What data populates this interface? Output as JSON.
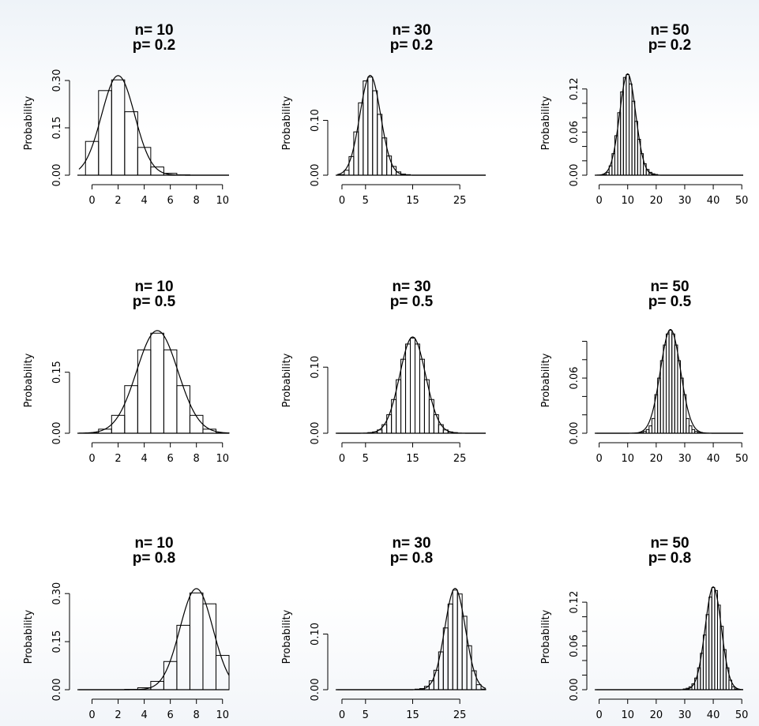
{
  "figure": {
    "grid": false,
    "layout": "3x3"
  },
  "chart_data": [
    {
      "type": "bar",
      "panel": "n10-p0.2",
      "title": "n= 10\np= 0.2",
      "n": 10,
      "p": 0.2,
      "xlabel": "",
      "ylabel": "Probability",
      "xlim": [
        -1,
        10.5
      ],
      "ylim": [
        0,
        0.33
      ],
      "xticks": [
        0,
        2,
        4,
        6,
        8,
        10
      ],
      "yticks": [
        0,
        0.15,
        0.3
      ],
      "ytick_labels": [
        "0.00",
        "0.15",
        "0.30"
      ],
      "x": [
        0,
        1,
        2,
        3,
        4,
        5,
        6,
        7,
        8,
        9,
        10
      ],
      "values": [
        0.107,
        0.268,
        0.302,
        0.201,
        0.088,
        0.026,
        0.006,
        0.001,
        0.0,
        0.0,
        0.0
      ],
      "normal_curve": {
        "mean": 2,
        "sd": 1.265
      }
    },
    {
      "type": "bar",
      "panel": "n30-p0.2",
      "title": "n= 30\np= 0.2",
      "n": 30,
      "p": 0.2,
      "xlabel": "",
      "ylabel": "Probability",
      "xlim": [
        -1,
        30.5
      ],
      "ylim": [
        0,
        0.19
      ],
      "xticks": [
        0,
        5,
        15,
        25
      ],
      "yticks": [
        0,
        0.1
      ],
      "ytick_labels": [
        "0.00",
        "0.10"
      ],
      "x": [
        0,
        1,
        2,
        3,
        4,
        5,
        6,
        7,
        8,
        9,
        10,
        11,
        12,
        13,
        14,
        15,
        16,
        17,
        18,
        19,
        20,
        21,
        22,
        23,
        24,
        25,
        26,
        27,
        28,
        29,
        30
      ],
      "values": [
        0.001,
        0.009,
        0.034,
        0.079,
        0.132,
        0.172,
        0.179,
        0.154,
        0.111,
        0.068,
        0.035,
        0.016,
        0.006,
        0.002,
        0.001,
        0.0,
        0.0,
        0.0,
        0.0,
        0.0,
        0.0,
        0.0,
        0.0,
        0.0,
        0.0,
        0.0,
        0.0,
        0.0,
        0.0,
        0.0,
        0.0
      ],
      "normal_curve": {
        "mean": 6,
        "sd": 2.191
      }
    },
    {
      "type": "bar",
      "panel": "n50-p0.2",
      "title": "n= 50\np= 0.2",
      "n": 50,
      "p": 0.2,
      "xlabel": "",
      "ylabel": "Probability",
      "xlim": [
        -1,
        50.5
      ],
      "ylim": [
        0,
        0.145
      ],
      "xticks": [
        0,
        10,
        20,
        30,
        40,
        50
      ],
      "yticks": [
        0,
        0.02,
        0.04,
        0.06,
        0.08,
        0.1,
        0.12
      ],
      "ytick_labels": [
        "0.00",
        "",
        "",
        "0.06",
        "",
        "",
        "0.12"
      ],
      "x": [
        0,
        1,
        2,
        3,
        4,
        5,
        6,
        7,
        8,
        9,
        10,
        11,
        12,
        13,
        14,
        15,
        16,
        17,
        18,
        19,
        20,
        21,
        22,
        23,
        24,
        25,
        26,
        27,
        28,
        29,
        30,
        31,
        32,
        33,
        34,
        35,
        36,
        37,
        38,
        39,
        40,
        41,
        42,
        43,
        44,
        45,
        46,
        47,
        48,
        49,
        50
      ],
      "values": [
        0.0,
        0.0,
        0.001,
        0.004,
        0.013,
        0.03,
        0.055,
        0.087,
        0.116,
        0.136,
        0.14,
        0.127,
        0.103,
        0.075,
        0.05,
        0.03,
        0.016,
        0.008,
        0.004,
        0.002,
        0.001,
        0.0,
        0.0,
        0.0,
        0.0,
        0.0,
        0.0,
        0.0,
        0.0,
        0.0,
        0.0,
        0.0,
        0.0,
        0.0,
        0.0,
        0.0,
        0.0,
        0.0,
        0.0,
        0.0,
        0.0,
        0.0,
        0.0,
        0.0,
        0.0,
        0.0,
        0.0,
        0.0,
        0.0,
        0.0,
        0.0
      ],
      "normal_curve": {
        "mean": 10,
        "sd": 2.828
      }
    },
    {
      "type": "bar",
      "panel": "n10-p0.5",
      "title": "n= 10\np= 0.5",
      "n": 10,
      "p": 0.5,
      "xlabel": "",
      "ylabel": "Probability",
      "xlim": [
        -1,
        10.5
      ],
      "ylim": [
        0,
        0.26
      ],
      "xticks": [
        0,
        2,
        4,
        6,
        8,
        10
      ],
      "yticks": [
        0,
        0.15
      ],
      "ytick_labels": [
        "0.00",
        "0.15"
      ],
      "x": [
        0,
        1,
        2,
        3,
        4,
        5,
        6,
        7,
        8,
        9,
        10
      ],
      "values": [
        0.001,
        0.01,
        0.044,
        0.117,
        0.205,
        0.246,
        0.205,
        0.117,
        0.044,
        0.01,
        0.001
      ],
      "normal_curve": {
        "mean": 5,
        "sd": 1.581
      }
    },
    {
      "type": "bar",
      "panel": "n30-p0.5",
      "title": "n= 30\np= 0.5",
      "n": 30,
      "p": 0.5,
      "xlabel": "",
      "ylabel": "Probability",
      "xlim": [
        -1,
        30.5
      ],
      "ylim": [
        0,
        0.16
      ],
      "xticks": [
        0,
        5,
        15,
        25
      ],
      "yticks": [
        0,
        0.1
      ],
      "ytick_labels": [
        "0.00",
        "0.10"
      ],
      "x": [
        0,
        1,
        2,
        3,
        4,
        5,
        6,
        7,
        8,
        9,
        10,
        11,
        12,
        13,
        14,
        15,
        16,
        17,
        18,
        19,
        20,
        21,
        22,
        23,
        24,
        25,
        26,
        27,
        28,
        29,
        30
      ],
      "values": [
        0.0,
        0.0,
        0.0,
        0.0,
        0.0,
        0.0,
        0.001,
        0.002,
        0.005,
        0.013,
        0.028,
        0.051,
        0.081,
        0.112,
        0.135,
        0.144,
        0.135,
        0.112,
        0.081,
        0.051,
        0.028,
        0.013,
        0.005,
        0.002,
        0.001,
        0.0,
        0.0,
        0.0,
        0.0,
        0.0,
        0.0
      ],
      "normal_curve": {
        "mean": 15,
        "sd": 2.739
      }
    },
    {
      "type": "bar",
      "panel": "n50-p0.5",
      "title": "n= 50\np= 0.5",
      "n": 50,
      "p": 0.5,
      "xlabel": "",
      "ylabel": "Probability",
      "xlim": [
        -1,
        50.5
      ],
      "ylim": [
        0,
        0.115
      ],
      "xticks": [
        0,
        10,
        20,
        30,
        40,
        50
      ],
      "yticks": [
        0,
        0.02,
        0.04,
        0.06,
        0.08,
        0.1
      ],
      "ytick_labels": [
        "0.00",
        "",
        "",
        "0.06",
        "",
        ""
      ],
      "x": [
        0,
        1,
        2,
        3,
        4,
        5,
        6,
        7,
        8,
        9,
        10,
        11,
        12,
        13,
        14,
        15,
        16,
        17,
        18,
        19,
        20,
        21,
        22,
        23,
        24,
        25,
        26,
        27,
        28,
        29,
        30,
        31,
        32,
        33,
        34,
        35,
        36,
        37,
        38,
        39,
        40,
        41,
        42,
        43,
        44,
        45,
        46,
        47,
        48,
        49,
        50
      ],
      "values": [
        0.0,
        0.0,
        0.0,
        0.0,
        0.0,
        0.0,
        0.0,
        0.0,
        0.0,
        0.0,
        0.0,
        0.0,
        0.0,
        0.0,
        0.0,
        0.001,
        0.002,
        0.004,
        0.008,
        0.016,
        0.042,
        0.06,
        0.079,
        0.096,
        0.108,
        0.112,
        0.108,
        0.096,
        0.079,
        0.06,
        0.042,
        0.016,
        0.008,
        0.004,
        0.002,
        0.001,
        0.0,
        0.0,
        0.0,
        0.0,
        0.0,
        0.0,
        0.0,
        0.0,
        0.0,
        0.0,
        0.0,
        0.0,
        0.0,
        0.0,
        0.0
      ],
      "normal_curve": {
        "mean": 25,
        "sd": 3.536
      }
    },
    {
      "type": "bar",
      "panel": "n10-p0.8",
      "title": "n= 10\np= 0.8",
      "n": 10,
      "p": 0.8,
      "xlabel": "",
      "ylabel": "Probability",
      "xlim": [
        -1,
        10.5
      ],
      "ylim": [
        0,
        0.33
      ],
      "xticks": [
        0,
        2,
        4,
        6,
        8,
        10
      ],
      "yticks": [
        0,
        0.15,
        0.3
      ],
      "ytick_labels": [
        "0.00",
        "0.15",
        "0.30"
      ],
      "x": [
        0,
        1,
        2,
        3,
        4,
        5,
        6,
        7,
        8,
        9,
        10
      ],
      "values": [
        0.0,
        0.0,
        0.0,
        0.001,
        0.006,
        0.026,
        0.088,
        0.201,
        0.302,
        0.268,
        0.107
      ],
      "normal_curve": {
        "mean": 8,
        "sd": 1.265
      }
    },
    {
      "type": "bar",
      "panel": "n30-p0.8",
      "title": "n= 30\np= 0.8",
      "n": 30,
      "p": 0.8,
      "xlabel": "",
      "ylabel": "Probability",
      "xlim": [
        -1,
        30.5
      ],
      "ylim": [
        0,
        0.19
      ],
      "xticks": [
        0,
        5,
        15,
        25
      ],
      "yticks": [
        0,
        0.1
      ],
      "ytick_labels": [
        "0.00",
        "0.10"
      ],
      "x": [
        0,
        1,
        2,
        3,
        4,
        5,
        6,
        7,
        8,
        9,
        10,
        11,
        12,
        13,
        14,
        15,
        16,
        17,
        18,
        19,
        20,
        21,
        22,
        23,
        24,
        25,
        26,
        27,
        28,
        29,
        30
      ],
      "values": [
        0.0,
        0.0,
        0.0,
        0.0,
        0.0,
        0.0,
        0.0,
        0.0,
        0.0,
        0.0,
        0.0,
        0.0,
        0.0,
        0.0,
        0.0,
        0.0,
        0.001,
        0.002,
        0.006,
        0.016,
        0.035,
        0.068,
        0.111,
        0.154,
        0.179,
        0.172,
        0.132,
        0.079,
        0.034,
        0.009,
        0.001
      ],
      "normal_curve": {
        "mean": 24,
        "sd": 2.191
      }
    },
    {
      "type": "bar",
      "panel": "n50-p0.8",
      "title": "n= 50\np= 0.8",
      "n": 50,
      "p": 0.8,
      "xlabel": "",
      "ylabel": "Probability",
      "xlim": [
        -1,
        50.5
      ],
      "ylim": [
        0,
        0.145
      ],
      "xticks": [
        0,
        10,
        20,
        30,
        40,
        50
      ],
      "yticks": [
        0,
        0.02,
        0.04,
        0.06,
        0.08,
        0.1,
        0.12
      ],
      "ytick_labels": [
        "0.00",
        "",
        "",
        "0.06",
        "",
        "",
        "0.12"
      ],
      "x": [
        0,
        1,
        2,
        3,
        4,
        5,
        6,
        7,
        8,
        9,
        10,
        11,
        12,
        13,
        14,
        15,
        16,
        17,
        18,
        19,
        20,
        21,
        22,
        23,
        24,
        25,
        26,
        27,
        28,
        29,
        30,
        31,
        32,
        33,
        34,
        35,
        36,
        37,
        38,
        39,
        40,
        41,
        42,
        43,
        44,
        45,
        46,
        47,
        48,
        49,
        50
      ],
      "values": [
        0.0,
        0.0,
        0.0,
        0.0,
        0.0,
        0.0,
        0.0,
        0.0,
        0.0,
        0.0,
        0.0,
        0.0,
        0.0,
        0.0,
        0.0,
        0.0,
        0.0,
        0.0,
        0.0,
        0.0,
        0.0,
        0.0,
        0.0,
        0.0,
        0.0,
        0.0,
        0.0,
        0.0,
        0.0,
        0.0,
        0.001,
        0.002,
        0.004,
        0.008,
        0.016,
        0.03,
        0.05,
        0.075,
        0.103,
        0.127,
        0.14,
        0.136,
        0.116,
        0.087,
        0.055,
        0.03,
        0.013,
        0.004,
        0.001,
        0.0,
        0.0
      ],
      "normal_curve": {
        "mean": 40,
        "sd": 2.828
      }
    }
  ]
}
